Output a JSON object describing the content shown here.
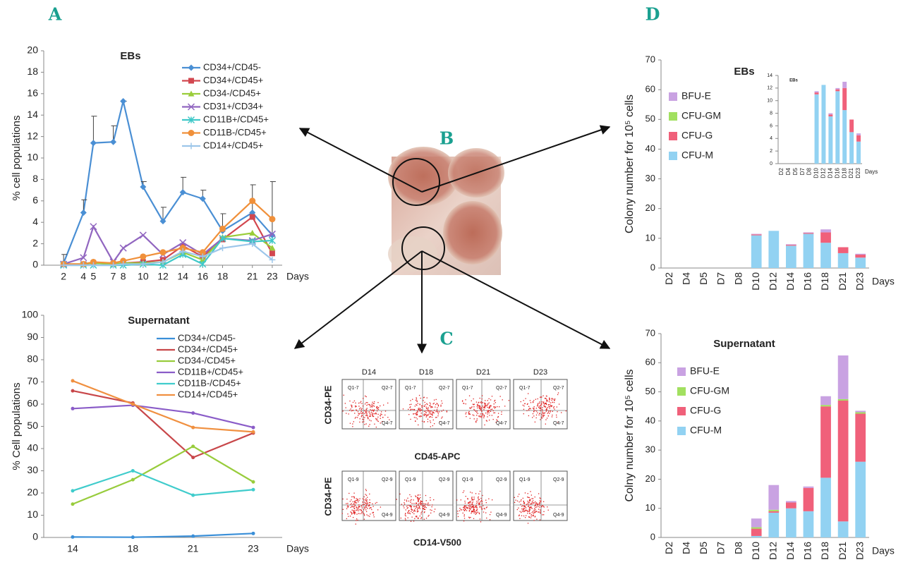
{
  "chart_data": [
    {
      "type": "line",
      "title": "EBs",
      "y_label": "% cell populations",
      "x_label": "Days",
      "x": [
        2,
        4,
        5,
        7,
        8,
        10,
        12,
        14,
        16,
        18,
        21,
        23
      ],
      "xlim": [
        0,
        24
      ],
      "xticks": [
        2,
        4,
        5,
        7,
        8,
        10,
        12,
        14,
        16,
        18,
        21,
        23
      ],
      "ylim": [
        0,
        20
      ],
      "yticks": [
        0,
        2,
        4,
        6,
        8,
        10,
        12,
        14,
        16,
        18,
        20
      ],
      "series": [
        {
          "name": "CD34+/CD45-",
          "color": "#4a8fd4",
          "marker": "diamond",
          "values": [
            0.2,
            4.9,
            11.4,
            11.5,
            15.3,
            7.3,
            4.1,
            6.8,
            6.2,
            3.2,
            4.9,
            2.8
          ],
          "errors": [
            0.8,
            1.2,
            2.5,
            1.5,
            0,
            0.5,
            1.3,
            1.4,
            0.8,
            1.6,
            2.6,
            5
          ]
        },
        {
          "name": "CD34+/CD45+",
          "color": "#d2474f",
          "marker": "square",
          "values": [
            0.1,
            0.1,
            0.2,
            0.1,
            0.2,
            0.3,
            0.5,
            1.8,
            0.8,
            2.4,
            4.5,
            1.1
          ]
        },
        {
          "name": "CD34-/CD45+",
          "color": "#9acd3a",
          "marker": "triangle",
          "values": [
            0.1,
            0.1,
            0.2,
            0.1,
            0.2,
            0.2,
            0.3,
            1.2,
            0.5,
            2.6,
            3.0,
            1.6
          ]
        },
        {
          "name": "CD31+/CD34+",
          "color": "#9166c0",
          "marker": "x",
          "values": [
            0.1,
            0.7,
            3.6,
            0.3,
            1.6,
            2.8,
            1.0,
            2.1,
            1.0,
            2.5,
            2.3,
            2.9
          ]
        },
        {
          "name": "CD11B+/CD45+",
          "color": "#3fc8c8",
          "marker": "asterisk",
          "values": [
            0,
            0,
            0,
            0,
            0,
            0.1,
            0,
            1.0,
            0.1,
            2.5,
            2.2,
            2.3
          ]
        },
        {
          "name": "CD11B-/CD45+",
          "color": "#f0903a",
          "marker": "circle",
          "values": [
            0.1,
            0.1,
            0.3,
            0.2,
            0.4,
            0.8,
            1.2,
            1.6,
            1.2,
            3.4,
            6.0,
            4.3
          ]
        },
        {
          "name": "CD14+/CD45+",
          "color": "#9cc6ea",
          "marker": "plus",
          "values": [
            0,
            0,
            0,
            0,
            0.1,
            0.1,
            0.3,
            1.3,
            0.8,
            1.6,
            2.0,
            0.5
          ]
        }
      ]
    },
    {
      "type": "line",
      "title": "Supernatant",
      "y_label": "% Cell populations",
      "x_label": "Days",
      "categories": [
        "14",
        "18",
        "21",
        "23"
      ],
      "ylim": [
        0,
        100
      ],
      "yticks": [
        0,
        10,
        20,
        30,
        40,
        50,
        60,
        70,
        80,
        90,
        100
      ],
      "series": [
        {
          "name": "CD34+/CD45-",
          "color": "#3a8fd8",
          "marker": "dot",
          "values": [
            0.2,
            0.1,
            0.6,
            1.8
          ]
        },
        {
          "name": "CD34+/CD45+",
          "color": "#c8474a",
          "marker": "dot",
          "values": [
            66,
            60.5,
            36,
            47
          ]
        },
        {
          "name": "CD34-/CD45+",
          "color": "#98cc3c",
          "marker": "dot",
          "values": [
            15,
            26,
            41,
            25
          ]
        },
        {
          "name": "CD11B+/CD45+",
          "color": "#8a5cc8",
          "marker": "dot",
          "values": [
            58,
            59.5,
            56,
            49.5
          ]
        },
        {
          "name": "CD11B-/CD45+",
          "color": "#40cccc",
          "marker": "dot",
          "values": [
            21,
            30,
            19,
            21.5
          ]
        },
        {
          "name": "CD14+/CD45+",
          "color": "#f09040",
          "marker": "dot",
          "values": [
            70.5,
            60,
            49.5,
            47.5
          ]
        }
      ]
    },
    {
      "type": "stacked_bar",
      "title": "EBs",
      "y_label": "Colony number for 10⁵ cells",
      "x_label": "Days",
      "categories": [
        "D2",
        "D4",
        "D5",
        "D7",
        "D8",
        "D10",
        "D12",
        "D14",
        "D16",
        "D18",
        "D21",
        "D23"
      ],
      "ylim": [
        0,
        70
      ],
      "yticks": [
        0,
        10,
        20,
        30,
        40,
        50,
        60,
        70
      ],
      "series": [
        {
          "name": "CFU-M",
          "color": "#92d2f2",
          "values": [
            0,
            0,
            0,
            0,
            0,
            11,
            12.5,
            7.5,
            11.5,
            8.5,
            5,
            3.5
          ]
        },
        {
          "name": "CFU-G",
          "color": "#f0607a",
          "values": [
            0,
            0,
            0,
            0,
            0,
            0.3,
            0,
            0.3,
            0.3,
            3.5,
            2,
            1
          ]
        },
        {
          "name": "CFU-GM",
          "color": "#a2e060",
          "values": [
            0,
            0,
            0,
            0,
            0,
            0,
            0,
            0,
            0,
            0,
            0,
            0
          ]
        },
        {
          "name": "BFU-E",
          "color": "#c9a2e2",
          "values": [
            0,
            0,
            0,
            0,
            0,
            0.2,
            0,
            0.2,
            0.2,
            1,
            0,
            0.3
          ]
        }
      ],
      "inset": {
        "title": "EBs",
        "x_label": "Days",
        "ylim": [
          0,
          14
        ],
        "yticks": [
          0,
          2,
          4,
          6,
          8,
          10,
          12,
          14
        ]
      }
    },
    {
      "type": "stacked_bar",
      "title": "Supernatant",
      "y_label": "Colny number for 10⁵ cells",
      "x_label": "Days",
      "categories": [
        "D2",
        "D4",
        "D5",
        "D7",
        "D8",
        "D10",
        "D12",
        "D14",
        "D16",
        "D18",
        "D21",
        "D23"
      ],
      "ylim": [
        0,
        70
      ],
      "yticks": [
        0,
        10,
        20,
        30,
        40,
        50,
        60,
        70
      ],
      "series": [
        {
          "name": "CFU-M",
          "color": "#92d2f2",
          "values": [
            0,
            0,
            0,
            0,
            0,
            0.5,
            8.5,
            10,
            9,
            20.5,
            5.5,
            26
          ]
        },
        {
          "name": "CFU-G",
          "color": "#f0607a",
          "values": [
            0,
            0,
            0,
            0,
            0,
            2.5,
            0.5,
            2,
            8,
            24.5,
            41.5,
            16.5
          ]
        },
        {
          "name": "CFU-GM",
          "color": "#a2e060",
          "values": [
            0,
            0,
            0,
            0,
            0,
            0.5,
            0.5,
            0,
            0,
            0.5,
            0.5,
            0.5
          ]
        },
        {
          "name": "BFU-E",
          "color": "#c9a2e2",
          "values": [
            0,
            0,
            0,
            0,
            0,
            3,
            8.5,
            0.5,
            0.5,
            3,
            15,
            0.5
          ]
        }
      ]
    }
  ],
  "panels": {
    "letters": [
      "A",
      "B",
      "C",
      "D"
    ],
    "flow": {
      "days": [
        "D14",
        "D18",
        "D21",
        "D23"
      ],
      "y_label": "CD34-PE",
      "rows": [
        {
          "x_label": "CD45-APC",
          "quadrants": [
            "Q1-7",
            "Q2-7",
            "Q4-7"
          ]
        },
        {
          "x_label": "CD14-V500",
          "quadrants": [
            "Q1-9",
            "Q2-9",
            "Q4-9"
          ]
        }
      ]
    }
  }
}
